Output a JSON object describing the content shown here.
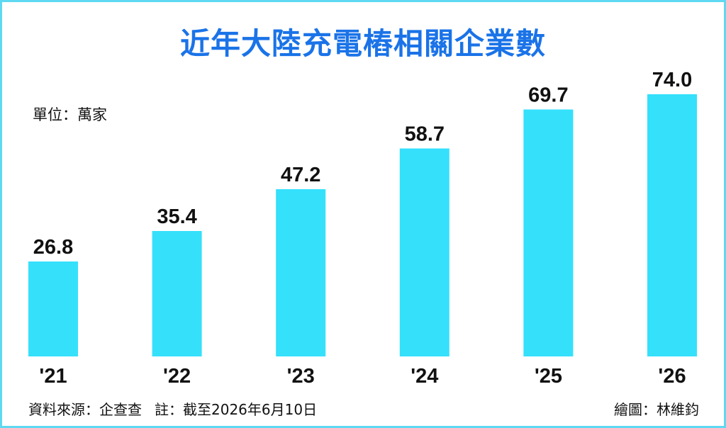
{
  "chart_data": {
    "type": "bar",
    "title": "近年大陸充電樁相關企業數",
    "unit_label": "單位：萬家",
    "categories": [
      "'21",
      "'22",
      "'23",
      "'24",
      "'25",
      "'26"
    ],
    "values": [
      26.8,
      35.4,
      47.2,
      58.7,
      69.7,
      74.0
    ],
    "value_labels": [
      "26.8",
      "35.4",
      "47.2",
      "58.7",
      "69.7",
      "74.0"
    ],
    "ylim": [
      0,
      80
    ],
    "grid": false,
    "bar_color": "#35e0fb"
  },
  "footer": {
    "source": "資料來源：企查查",
    "note": "註：截至2026年6月10日",
    "credit": "繪圖：林維鈞"
  },
  "colors": {
    "title": "#1a73e8",
    "border": "#5fd9f2",
    "text": "#111111"
  }
}
